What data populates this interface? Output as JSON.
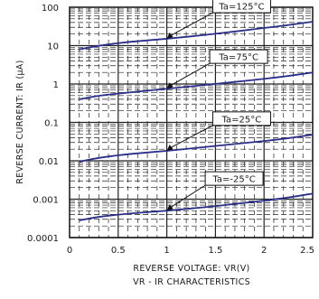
{
  "chart_data": {
    "type": "line",
    "xlabel": "REVERSE VOLTAGE: VR(V)",
    "xlabel_line2": "VR - IR CHARACTERISTICS",
    "ylabel": "REVERSE CURRENT: IR (µA)",
    "x_ticks": [
      "0",
      "0.5",
      "1",
      "1.5",
      "2",
      "2.5"
    ],
    "y_ticks": [
      "100",
      "10",
      "1",
      "0.1",
      "0.01",
      "0.001",
      "0.0001"
    ],
    "xlim": [
      0,
      2.5
    ],
    "ylim": [
      0.0001,
      100
    ],
    "y_scale": "log",
    "grid": true,
    "colors": {
      "series": "#2b2f8a",
      "grid": "#222222"
    },
    "series": [
      {
        "name": "Ta=125°C",
        "x": [
          0.1,
          0.3,
          0.6,
          1.0,
          1.4,
          1.8,
          2.2,
          2.5
        ],
        "y": [
          8,
          10,
          12.5,
          15,
          19,
          25,
          33,
          42
        ]
      },
      {
        "name": "Ta=75°C",
        "x": [
          0.1,
          0.3,
          0.6,
          1.0,
          1.4,
          1.8,
          2.2,
          2.5
        ],
        "y": [
          0.4,
          0.5,
          0.6,
          0.75,
          0.95,
          1.2,
          1.55,
          2.0
        ]
      },
      {
        "name": "Ta=25°C",
        "x": [
          0.1,
          0.3,
          0.6,
          1.0,
          1.4,
          1.8,
          2.2,
          2.5
        ],
        "y": [
          0.0095,
          0.012,
          0.015,
          0.018,
          0.023,
          0.029,
          0.037,
          0.048
        ]
      },
      {
        "name": "Ta=-25°C",
        "x": [
          0.1,
          0.3,
          0.6,
          1.0,
          1.4,
          1.8,
          2.2,
          2.5
        ],
        "y": [
          0.00028,
          0.00035,
          0.00042,
          0.0005,
          0.00062,
          0.0008,
          0.00105,
          0.0014
        ]
      }
    ]
  }
}
